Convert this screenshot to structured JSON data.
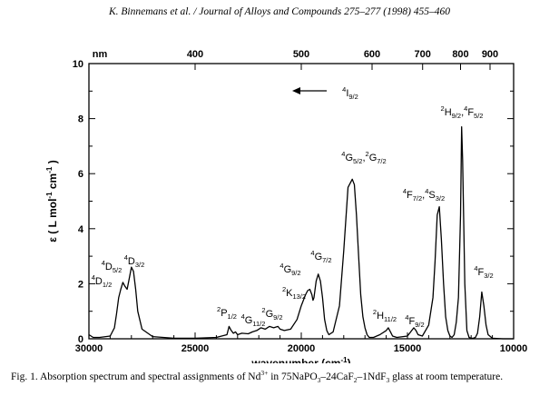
{
  "header": {
    "text": "K. Binnemans et al. / Journal of Alloys and Compounds 275–277 (1998) 455–460"
  },
  "caption": {
    "prefix": "Fig. 1. Absorption spectrum and spectral assignments of Nd",
    "ion_charge": "3+",
    "middle_1": " in 75NaPO",
    "sub_1": "3",
    "middle_2": "–24CaF",
    "sub_2": "2",
    "middle_3": "–1NdF",
    "sub_3": "3",
    "suffix": " glass at room temperature."
  },
  "chart_data": {
    "type": "line",
    "xlabel": "wavenumber (cm",
    "xlabel_sup": "-1",
    "xlabel_end": ")",
    "ylabel": "ε ( L mol",
    "ylabel_sup1": "-1",
    "ylabel_mid": " cm",
    "ylabel_sup2": "-1",
    "ylabel_end": " )",
    "xlim": [
      30000,
      10000
    ],
    "ylim": [
      0,
      10
    ],
    "x_ticks": [
      30000,
      25000,
      20000,
      15000,
      10000
    ],
    "x_tick_labels": [
      "30000",
      "25000",
      "20000",
      "15000",
      "10000"
    ],
    "y_ticks": [
      0,
      2,
      4,
      6,
      8,
      10
    ],
    "y_tick_labels": [
      "0",
      "2",
      "4",
      "6",
      "8",
      "10"
    ],
    "top_axis": {
      "unit_label": "nm",
      "ticks_nm": [
        400,
        500,
        600,
        700,
        800,
        900
      ],
      "tick_labels": [
        "400",
        "500",
        "600",
        "700",
        "800",
        "900"
      ]
    },
    "series": [
      {
        "x": [
          30000,
          29800,
          29500,
          29000,
          28800,
          28700,
          28600,
          28500,
          28400,
          28300,
          28200,
          28100,
          28000,
          27900,
          27800,
          27700,
          27500,
          27000,
          26000,
          25000,
          24000,
          23500,
          23400,
          23300,
          23250,
          23200,
          23100,
          23000,
          22800,
          22500,
          22300,
          22100,
          21900,
          21700,
          21500,
          21300,
          21100,
          21000,
          20800,
          20500,
          20200,
          20000,
          19800,
          19700,
          19600,
          19500,
          19450,
          19400,
          19300,
          19200,
          19100,
          19000,
          18900,
          18800,
          18700,
          18500,
          18200,
          18000,
          17800,
          17600,
          17500,
          17400,
          17300,
          17200,
          17100,
          17000,
          16900,
          16800,
          16600,
          16300,
          16000,
          15900,
          15800,
          15700,
          15500,
          15000,
          14800,
          14700,
          14600,
          14500,
          14300,
          14000,
          13800,
          13700,
          13600,
          13500,
          13400,
          13300,
          13200,
          13100,
          13000,
          12900,
          12800,
          12700,
          12600,
          12500,
          12450,
          12400,
          12300,
          12200,
          12100,
          12000,
          11900,
          11800,
          11700,
          11600,
          11500,
          11400,
          11300,
          11200,
          11000,
          10500,
          10000
        ],
        "y": [
          0.15,
          0.05,
          0.05,
          0.1,
          0.4,
          0.9,
          1.5,
          1.8,
          2.05,
          1.9,
          1.8,
          2.2,
          2.6,
          2.45,
          1.8,
          1.0,
          0.35,
          0.08,
          0.02,
          0.02,
          0.05,
          0.15,
          0.45,
          0.3,
          0.25,
          0.2,
          0.25,
          0.15,
          0.2,
          0.18,
          0.25,
          0.3,
          0.4,
          0.35,
          0.45,
          0.4,
          0.45,
          0.35,
          0.3,
          0.35,
          0.7,
          1.2,
          1.6,
          1.75,
          1.8,
          1.6,
          1.4,
          1.5,
          2.1,
          2.35,
          2.1,
          1.5,
          0.7,
          0.3,
          0.15,
          0.25,
          1.2,
          3.2,
          5.5,
          5.8,
          5.6,
          4.5,
          3.0,
          1.6,
          0.8,
          0.4,
          0.15,
          0.05,
          0.05,
          0.15,
          0.3,
          0.4,
          0.25,
          0.1,
          0.05,
          0.1,
          0.3,
          0.4,
          0.3,
          0.15,
          0.1,
          0.5,
          1.5,
          2.8,
          4.5,
          4.8,
          3.6,
          2.0,
          0.8,
          0.3,
          0.1,
          0.05,
          0.15,
          0.6,
          1.5,
          4.5,
          7.7,
          6.5,
          2.0,
          0.3,
          0.05,
          0.02,
          0.02,
          0.05,
          0.2,
          0.8,
          1.7,
          1.2,
          0.5,
          0.15,
          0.02,
          0.0,
          0.0
        ]
      }
    ],
    "annotations": {
      "arrow_label": {
        "base": "4",
        "main": "I",
        "sub": "9/2"
      },
      "assignments": [
        {
          "id": "d12",
          "base": "4",
          "main": "D",
          "sub": "1/2"
        },
        {
          "id": "d52",
          "base": "4",
          "main": "D",
          "sub": "5/2"
        },
        {
          "id": "d32",
          "base": "4",
          "main": "D",
          "sub": "3/2"
        },
        {
          "id": "p12",
          "base": "2",
          "main": "P",
          "sub": "1/2"
        },
        {
          "id": "g112",
          "base": "4",
          "main": "G",
          "sub": "11/2"
        },
        {
          "id": "g92b",
          "base": "2",
          "main": "G",
          "sub": "9/2"
        },
        {
          "id": "k132",
          "base": "2",
          "main": "K",
          "sub": "13/2"
        },
        {
          "id": "g92",
          "base": "4",
          "main": "G",
          "sub": "9/2"
        },
        {
          "id": "g72",
          "base": "4",
          "main": "G",
          "sub": "7/2"
        },
        {
          "id": "g52",
          "base": "4",
          "main": "G",
          "sub": "5/2",
          "base2": "2",
          "main2": "G",
          "sub2": "7/2"
        },
        {
          "id": "h112",
          "base": "2",
          "main": "H",
          "sub": "11/2"
        },
        {
          "id": "f92",
          "base": "4",
          "main": "F",
          "sub": "9/2"
        },
        {
          "id": "f72",
          "base": "4",
          "main": "F",
          "sub": "7/2",
          "base2": "4",
          "main2": "S",
          "sub2": "3/2"
        },
        {
          "id": "h92",
          "base": "2",
          "main": "H",
          "sub": "9/2",
          "base2": "4",
          "main2": "F",
          "sub2": "5/2"
        },
        {
          "id": "f32",
          "base": "4",
          "main": "F",
          "sub": "3/2"
        }
      ]
    },
    "grid": false,
    "legend": "none",
    "line_color": "#000000"
  }
}
